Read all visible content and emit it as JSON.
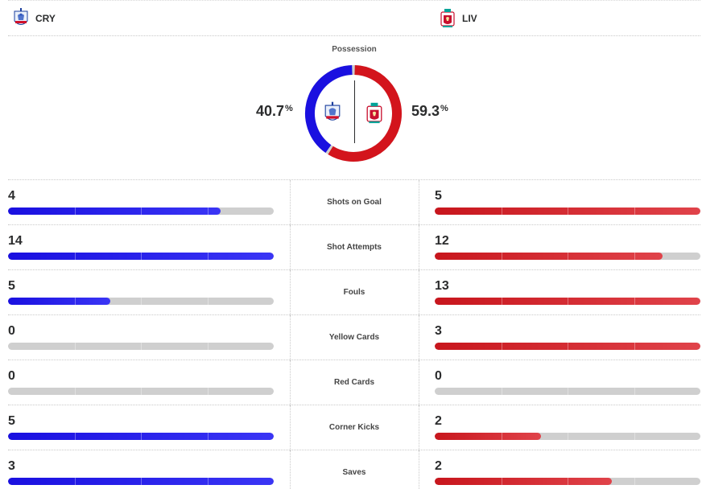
{
  "colors": {
    "home": "#1a10e0",
    "away": "#d3141c",
    "track": "#cfcfcf"
  },
  "home": {
    "abbr": "CRY",
    "crest_icon": "crystal-palace-crest-icon"
  },
  "away": {
    "abbr": "LIV",
    "crest_icon": "liverpool-crest-icon"
  },
  "possession": {
    "title": "Possession",
    "home_value": "40.7",
    "away_value": "59.3",
    "unit": "%"
  },
  "stats": [
    {
      "label": "Shots on Goal",
      "home": "4",
      "away": "5",
      "home_fill": 0.8,
      "away_fill": 1.0
    },
    {
      "label": "Shot Attempts",
      "home": "14",
      "away": "12",
      "home_fill": 1.0,
      "away_fill": 0.857
    },
    {
      "label": "Fouls",
      "home": "5",
      "away": "13",
      "home_fill": 0.385,
      "away_fill": 1.0
    },
    {
      "label": "Yellow Cards",
      "home": "0",
      "away": "3",
      "home_fill": 0.0,
      "away_fill": 1.0
    },
    {
      "label": "Red Cards",
      "home": "0",
      "away": "0",
      "home_fill": 0.0,
      "away_fill": 0.0
    },
    {
      "label": "Corner Kicks",
      "home": "5",
      "away": "2",
      "home_fill": 1.0,
      "away_fill": 0.4
    },
    {
      "label": "Saves",
      "home": "3",
      "away": "2",
      "home_fill": 1.0,
      "away_fill": 0.667
    }
  ]
}
